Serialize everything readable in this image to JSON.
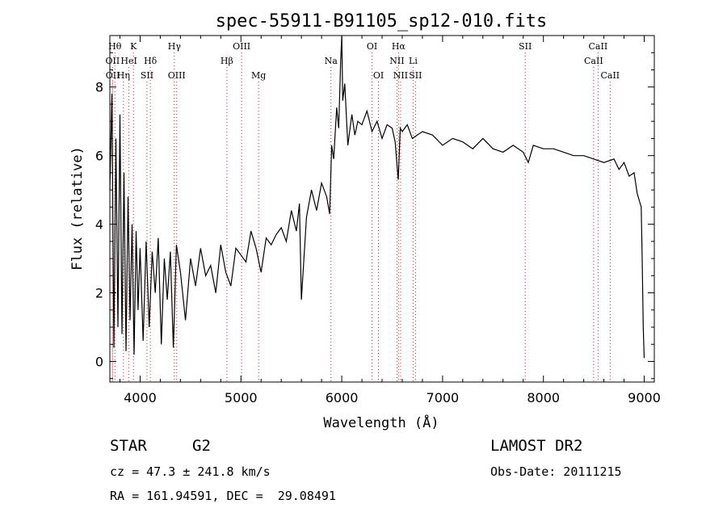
{
  "chart_data": {
    "type": "line",
    "title": "spec-55911-B91105_sp12-010.fits",
    "xlabel": "Wavelength (Å)",
    "ylabel": "Flux (relative)",
    "xlim": [
      3700,
      9100
    ],
    "ylim": [
      -0.6,
      9.5
    ],
    "xticks": [
      4000,
      5000,
      6000,
      7000,
      8000,
      9000
    ],
    "yticks": [
      0,
      2,
      4,
      6,
      8
    ],
    "grid": false,
    "series_color": "#000000",
    "line_marker_color": "#d62728",
    "series": [
      {
        "x": [
          3700,
          3720,
          3740,
          3760,
          3780,
          3800,
          3820,
          3840,
          3860,
          3880,
          3900,
          3920,
          3940,
          3960,
          3980,
          4000,
          4030,
          4060,
          4090,
          4120,
          4150,
          4180,
          4210,
          4240,
          4270,
          4300,
          4330,
          4360,
          4400,
          4450,
          4500,
          4550,
          4600,
          4650,
          4700,
          4750,
          4800,
          4850,
          4900,
          4950,
          5000,
          5050,
          5100,
          5150,
          5200,
          5250,
          5300,
          5350,
          5400,
          5450,
          5500,
          5550,
          5580,
          5600,
          5650,
          5700,
          5750,
          5800,
          5850,
          5880,
          5900,
          5920,
          5950,
          5970,
          5990,
          6000,
          6010,
          6030,
          6060,
          6100,
          6130,
          6160,
          6200,
          6250,
          6300,
          6350,
          6400,
          6450,
          6500,
          6530,
          6560,
          6580,
          6600,
          6650,
          6700,
          6800,
          6900,
          7000,
          7100,
          7200,
          7300,
          7400,
          7500,
          7600,
          7700,
          7800,
          7850,
          7900,
          8000,
          8100,
          8200,
          8300,
          8400,
          8500,
          8600,
          8700,
          8750,
          8800,
          8850,
          8900,
          8930,
          8950,
          8970,
          8980,
          8990,
          9000
        ],
        "values": [
          5.0,
          7.8,
          0.4,
          6.5,
          1.0,
          7.2,
          0.8,
          5.5,
          0.3,
          4.8,
          1.2,
          4.0,
          0.2,
          3.8,
          1.5,
          3.3,
          0.6,
          3.5,
          1.0,
          3.2,
          2.0,
          3.6,
          0.5,
          3.0,
          1.8,
          3.2,
          0.4,
          3.4,
          2.6,
          1.2,
          3.0,
          2.2,
          3.3,
          2.5,
          2.8,
          2.0,
          3.4,
          2.6,
          2.2,
          3.3,
          3.1,
          2.9,
          3.8,
          3.3,
          2.6,
          3.6,
          3.4,
          3.7,
          3.9,
          3.5,
          4.4,
          3.8,
          4.6,
          1.8,
          4.2,
          5.0,
          4.4,
          5.2,
          4.8,
          4.3,
          6.3,
          5.9,
          7.4,
          6.8,
          8.8,
          9.5,
          7.6,
          8.1,
          6.3,
          7.2,
          6.6,
          7.0,
          6.9,
          7.3,
          6.7,
          7.0,
          6.5,
          6.9,
          6.8,
          6.4,
          5.3,
          6.8,
          6.7,
          6.9,
          6.5,
          6.7,
          6.6,
          6.3,
          6.5,
          6.4,
          6.2,
          6.5,
          6.2,
          6.1,
          6.3,
          6.1,
          5.8,
          6.3,
          6.2,
          6.2,
          6.1,
          6.0,
          6.0,
          5.9,
          5.8,
          5.9,
          5.6,
          5.8,
          5.4,
          5.5,
          4.9,
          4.7,
          4.5,
          3.0,
          1.0,
          0.1
        ]
      }
    ],
    "line_markers": [
      {
        "label": "Hθ",
        "x": 3750,
        "row": 0
      },
      {
        "label": "K",
        "x": 3934,
        "row": 0
      },
      {
        "label": "Hγ",
        "x": 4340,
        "row": 0
      },
      {
        "label": "OIII",
        "x": 5007,
        "row": 0
      },
      {
        "label": "OI",
        "x": 6300,
        "row": 0
      },
      {
        "label": "Hα",
        "x": 6563,
        "row": 0
      },
      {
        "label": "SII",
        "x": 7820,
        "row": 0
      },
      {
        "label": "CaII",
        "x": 8542,
        "row": 0
      },
      {
        "label": "OII",
        "x": 3727,
        "row": 1
      },
      {
        "label": "HeI",
        "x": 3889,
        "row": 1
      },
      {
        "label": "Hδ",
        "x": 4102,
        "row": 1
      },
      {
        "label": "Hβ",
        "x": 4861,
        "row": 1
      },
      {
        "label": "Na",
        "x": 5893,
        "row": 1
      },
      {
        "label": "NII",
        "x": 6548,
        "row": 1
      },
      {
        "label": "Li",
        "x": 6708,
        "row": 1
      },
      {
        "label": "CaII",
        "x": 8498,
        "row": 1
      },
      {
        "label": "OII",
        "x": 3729,
        "row": 2
      },
      {
        "label": "Hη",
        "x": 3835,
        "row": 2
      },
      {
        "label": "SII",
        "x": 4068,
        "row": 2
      },
      {
        "label": "OIII",
        "x": 4363,
        "row": 2
      },
      {
        "label": "Mg",
        "x": 5175,
        "row": 2
      },
      {
        "label": "OI",
        "x": 6364,
        "row": 2
      },
      {
        "label": "NII",
        "x": 6584,
        "row": 2
      },
      {
        "label": "SII",
        "x": 6731,
        "row": 2
      },
      {
        "label": "CaII",
        "x": 8662,
        "row": 2
      }
    ]
  },
  "info": {
    "object_class": "STAR",
    "subclass": "G2",
    "survey": "LAMOST DR2",
    "redshift": "cz = 47.3 ± 241.8 km/s",
    "obs_date": "Obs-Date: 20111215",
    "coords": "RA = 161.94591, DEC =  29.08491"
  }
}
